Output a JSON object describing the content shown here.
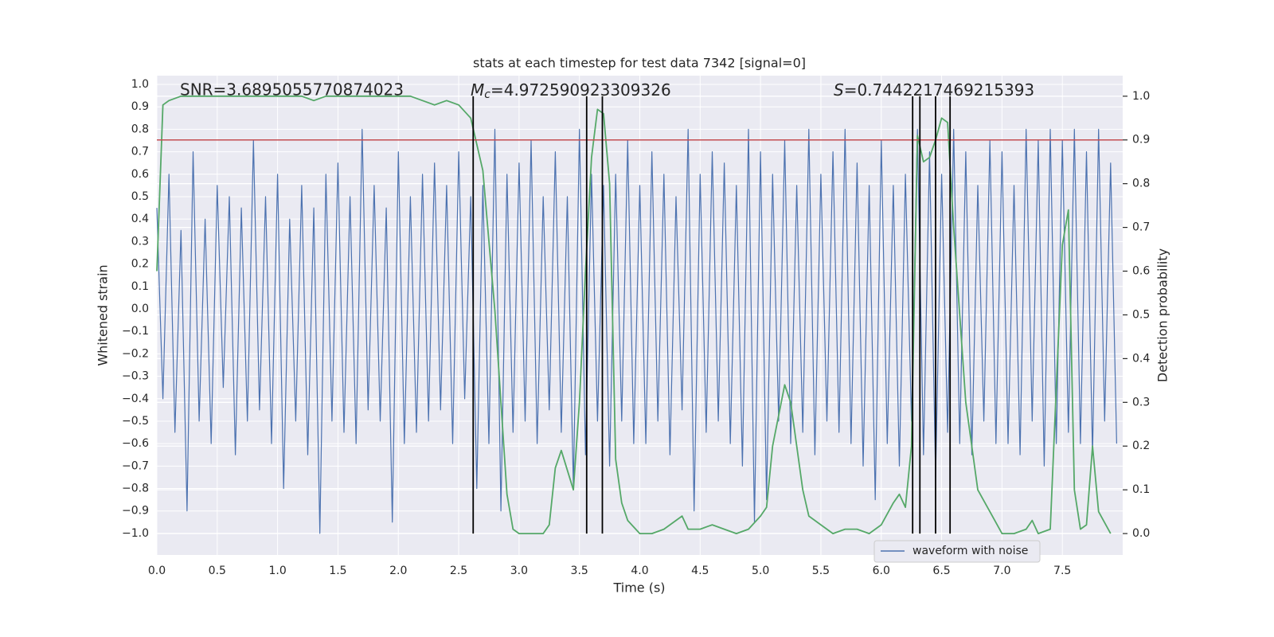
{
  "chart_data": {
    "type": "line",
    "title": "stats at each timestep for test data 7342 [signal=0]",
    "xlabel": "Time (s)",
    "ylabel": "Whitened strain",
    "y2label": "Detection probability",
    "annotations": [
      {
        "text": "SNR=3.6895055770874023"
      },
      {
        "symbol": "M",
        "subscript": "c",
        "text": "=4.972590923309326"
      },
      {
        "symbol": "S",
        "text": "=0.7442217469215393"
      }
    ],
    "xlim": [
      0,
      8.0
    ],
    "ylim": [
      -1.096,
      1.039
    ],
    "y2lim": [
      -0.049,
      1.047
    ],
    "grid": true,
    "legend": "lower right",
    "xticks": [
      {
        "value": 0,
        "label": "0.0"
      },
      {
        "value": 0.5,
        "label": "0.5"
      },
      {
        "value": 1,
        "label": "1.0"
      },
      {
        "value": 1.5,
        "label": "1.5"
      },
      {
        "value": 2,
        "label": "2.0"
      },
      {
        "value": 2.5,
        "label": "2.5"
      },
      {
        "value": 3,
        "label": "3.0"
      },
      {
        "value": 3.5,
        "label": "3.5"
      },
      {
        "value": 4,
        "label": "4.0"
      },
      {
        "value": 4.5,
        "label": "4.5"
      },
      {
        "value": 5,
        "label": "5.0"
      },
      {
        "value": 5.5,
        "label": "5.5"
      },
      {
        "value": 6,
        "label": "6.0"
      },
      {
        "value": 6.5,
        "label": "6.5"
      },
      {
        "value": 7,
        "label": "7.0"
      },
      {
        "value": 7.5,
        "label": "7.5"
      }
    ],
    "yticks": [
      {
        "value": -1,
        "label": "−1.0"
      },
      {
        "value": -0.9,
        "label": "−0.9"
      },
      {
        "value": -0.8,
        "label": "−0.8"
      },
      {
        "value": -0.7,
        "label": "−0.7"
      },
      {
        "value": -0.6,
        "label": "−0.6"
      },
      {
        "value": -0.5,
        "label": "−0.5"
      },
      {
        "value": -0.4,
        "label": "−0.4"
      },
      {
        "value": -0.3,
        "label": "−0.3"
      },
      {
        "value": -0.2,
        "label": "−0.2"
      },
      {
        "value": -0.1,
        "label": "−0.1"
      },
      {
        "value": 0,
        "label": "0.0"
      },
      {
        "value": 0.1,
        "label": "0.1"
      },
      {
        "value": 0.2,
        "label": "0.2"
      },
      {
        "value": 0.3,
        "label": "0.3"
      },
      {
        "value": 0.4,
        "label": "0.4"
      },
      {
        "value": 0.5,
        "label": "0.5"
      },
      {
        "value": 0.6,
        "label": "0.6"
      },
      {
        "value": 0.7,
        "label": "0.7"
      },
      {
        "value": 0.8,
        "label": "0.8"
      },
      {
        "value": 0.9,
        "label": "0.9"
      },
      {
        "value": 1,
        "label": "1.0"
      }
    ],
    "y2ticks": [
      {
        "value": 0,
        "label": "0.0"
      },
      {
        "value": 0.1,
        "label": "0.1"
      },
      {
        "value": 0.2,
        "label": "0.2"
      },
      {
        "value": 0.3,
        "label": "0.3"
      },
      {
        "value": 0.4,
        "label": "0.4"
      },
      {
        "value": 0.5,
        "label": "0.5"
      },
      {
        "value": 0.6,
        "label": "0.6"
      },
      {
        "value": 0.7,
        "label": "0.7"
      },
      {
        "value": 0.8,
        "label": "0.8"
      },
      {
        "value": 0.9,
        "label": "0.9"
      },
      {
        "value": 1,
        "label": "1.0"
      }
    ],
    "hline": {
      "value": 0.9,
      "axis": "y2",
      "color": "#c44e52"
    },
    "vlines": {
      "x": [
        2.62,
        3.56,
        3.69,
        6.26,
        6.32,
        6.45,
        6.57
      ],
      "ymin": 0,
      "ymax": 1,
      "axis": "y2",
      "color": "#000000"
    },
    "series": [
      {
        "name": "waveform with noise",
        "color": "#4c72b0",
        "x": [
          0,
          0.05,
          0.1,
          0.15,
          0.2,
          0.25,
          0.3,
          0.35,
          0.4,
          0.45,
          0.5,
          0.55,
          0.6,
          0.65,
          0.7,
          0.75,
          0.8,
          0.85,
          0.9,
          0.95,
          1,
          1.05,
          1.1,
          1.15,
          1.2,
          1.25,
          1.3,
          1.35,
          1.4,
          1.45,
          1.5,
          1.55,
          1.6,
          1.65,
          1.7,
          1.75,
          1.8,
          1.85,
          1.9,
          1.95,
          2,
          2.05,
          2.1,
          2.15,
          2.2,
          2.25,
          2.3,
          2.35,
          2.4,
          2.45,
          2.5,
          2.55,
          2.6,
          2.65,
          2.7,
          2.75,
          2.8,
          2.85,
          2.9,
          2.95,
          3,
          3.05,
          3.1,
          3.15,
          3.2,
          3.25,
          3.3,
          3.35,
          3.4,
          3.45,
          3.5,
          3.55,
          3.6,
          3.65,
          3.7,
          3.75,
          3.8,
          3.85,
          3.9,
          3.95,
          4,
          4.05,
          4.1,
          4.15,
          4.2,
          4.25,
          4.3,
          4.35,
          4.4,
          4.45,
          4.5,
          4.55,
          4.6,
          4.65,
          4.7,
          4.75,
          4.8,
          4.85,
          4.9,
          4.95,
          5,
          5.05,
          5.1,
          5.15,
          5.2,
          5.25,
          5.3,
          5.35,
          5.4,
          5.45,
          5.5,
          5.55,
          5.6,
          5.65,
          5.7,
          5.75,
          5.8,
          5.85,
          5.9,
          5.95,
          6,
          6.05,
          6.1,
          6.15,
          6.2,
          6.25,
          6.3,
          6.35,
          6.4,
          6.45,
          6.5,
          6.55,
          6.6,
          6.65,
          6.7,
          6.75,
          6.8,
          6.85,
          6.9,
          6.95,
          7,
          7.05,
          7.1,
          7.15,
          7.2,
          7.25,
          7.3,
          7.35,
          7.4,
          7.45,
          7.5,
          7.55,
          7.6,
          7.65,
          7.7,
          7.75,
          7.8,
          7.85,
          7.9,
          7.95
        ],
        "values": [
          0.45,
          -0.4,
          0.6,
          -0.55,
          0.35,
          -0.9,
          0.7,
          -0.5,
          0.4,
          -0.6,
          0.55,
          -0.35,
          0.5,
          -0.65,
          0.45,
          -0.5,
          0.75,
          -0.45,
          0.5,
          -0.6,
          0.6,
          -0.8,
          0.4,
          -0.5,
          0.55,
          -0.65,
          0.45,
          -1.0,
          0.6,
          -0.5,
          0.65,
          -0.55,
          0.5,
          -0.6,
          0.8,
          -0.45,
          0.55,
          -0.5,
          0.45,
          -0.95,
          0.7,
          -0.6,
          0.5,
          -0.55,
          0.6,
          -0.5,
          0.65,
          -0.45,
          0.55,
          -0.6,
          0.7,
          -0.4,
          0.5,
          -0.8,
          0.55,
          -0.6,
          0.8,
          -0.9,
          0.6,
          -0.55,
          0.65,
          -0.5,
          0.75,
          -0.6,
          0.5,
          -0.45,
          0.7,
          -0.55,
          0.5,
          -0.8,
          0.8,
          -0.65,
          0.6,
          -0.5,
          0.55,
          -0.7,
          0.6,
          -0.5,
          0.75,
          -0.6,
          0.55,
          -0.6,
          0.7,
          -0.5,
          0.6,
          -0.65,
          0.5,
          -0.45,
          0.8,
          -0.9,
          0.6,
          -0.55,
          0.7,
          -0.5,
          0.65,
          -0.6,
          0.55,
          -0.7,
          0.8,
          -0.95,
          0.7,
          -0.85,
          0.6,
          -0.5,
          0.75,
          -0.6,
          0.55,
          -0.55,
          0.8,
          -0.65,
          0.6,
          -0.5,
          0.7,
          -0.55,
          0.8,
          -0.6,
          0.65,
          -0.7,
          0.55,
          -0.85,
          0.75,
          -0.6,
          0.55,
          -0.7,
          0.6,
          -0.5,
          0.8,
          -0.65,
          0.7,
          -0.75,
          0.6,
          -0.55,
          0.8,
          -0.6,
          0.7,
          -0.65,
          0.55,
          -0.5,
          0.75,
          -0.6,
          0.7,
          -0.6,
          0.55,
          -0.65,
          0.8,
          -0.5,
          0.75,
          -0.7,
          0.8,
          -0.6,
          0.75,
          -0.55,
          0.8,
          -0.6,
          0.7,
          -0.65,
          0.8,
          -0.5,
          0.65,
          -0.6
        ]
      },
      {
        "color": "#55a868",
        "axis": "y2",
        "x": [
          0,
          0.05,
          0.1,
          0.2,
          0.4,
          0.6,
          0.8,
          1.0,
          1.2,
          1.3,
          1.4,
          1.6,
          1.8,
          2.0,
          2.1,
          2.2,
          2.3,
          2.4,
          2.5,
          2.6,
          2.7,
          2.8,
          2.9,
          2.95,
          3.0,
          3.1,
          3.2,
          3.25,
          3.3,
          3.35,
          3.45,
          3.5,
          3.55,
          3.6,
          3.65,
          3.7,
          3.75,
          3.8,
          3.85,
          3.9,
          4.0,
          4.1,
          4.2,
          4.3,
          4.35,
          4.4,
          4.5,
          4.6,
          4.7,
          4.8,
          4.9,
          5.0,
          5.05,
          5.1,
          5.2,
          5.25,
          5.3,
          5.35,
          5.4,
          5.5,
          5.6,
          5.7,
          5.8,
          5.9,
          6.0,
          6.1,
          6.15,
          6.2,
          6.25,
          6.3,
          6.35,
          6.4,
          6.45,
          6.5,
          6.55,
          6.6,
          6.7,
          6.8,
          6.9,
          7.0,
          7.1,
          7.2,
          7.25,
          7.3,
          7.4,
          7.5,
          7.55,
          7.6,
          7.65,
          7.7,
          7.75,
          7.8,
          7.9
        ],
        "values": [
          0.6,
          0.98,
          0.99,
          1.0,
          1.0,
          1.0,
          1.0,
          1.0,
          1.0,
          0.99,
          1.0,
          1.0,
          1.0,
          1.0,
          1.0,
          0.99,
          0.98,
          0.99,
          0.98,
          0.95,
          0.83,
          0.51,
          0.09,
          0.01,
          0.0,
          0.0,
          0.0,
          0.02,
          0.15,
          0.19,
          0.1,
          0.3,
          0.6,
          0.86,
          0.97,
          0.96,
          0.8,
          0.17,
          0.07,
          0.03,
          0.0,
          0.0,
          0.01,
          0.03,
          0.04,
          0.01,
          0.01,
          0.02,
          0.01,
          0.0,
          0.01,
          0.04,
          0.06,
          0.2,
          0.34,
          0.3,
          0.2,
          0.1,
          0.04,
          0.02,
          0.0,
          0.01,
          0.01,
          0.0,
          0.02,
          0.07,
          0.09,
          0.06,
          0.2,
          0.91,
          0.85,
          0.86,
          0.9,
          0.95,
          0.94,
          0.7,
          0.3,
          0.1,
          0.05,
          0.0,
          0.0,
          0.01,
          0.03,
          0.0,
          0.01,
          0.66,
          0.74,
          0.1,
          0.01,
          0.02,
          0.2,
          0.05,
          0.0
        ]
      }
    ]
  }
}
